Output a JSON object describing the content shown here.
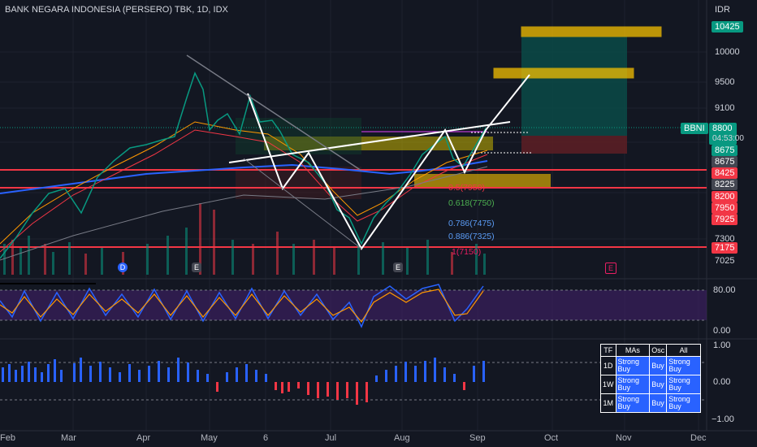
{
  "chart": {
    "title": "BANK NEGARA INDONESIA (PERSERO) TBK, 1D, IDX",
    "currency": "IDR",
    "symbol": "BBNI",
    "last_price": "8800",
    "countdown": "04:53:00"
  },
  "price_axis": {
    "ticks": [
      "10000",
      "9500",
      "9100",
      "7300",
      "7025"
    ],
    "tags": [
      {
        "text": "10425",
        "kind": "teal"
      },
      {
        "text": "8675",
        "kind": "teal"
      },
      {
        "text": "8675",
        "kind": "grey"
      },
      {
        "text": "8425",
        "kind": "red"
      },
      {
        "text": "8225",
        "kind": "grey"
      },
      {
        "text": "8200",
        "kind": "red"
      },
      {
        "text": "7950",
        "kind": "red"
      },
      {
        "text": "7925",
        "kind": "red"
      },
      {
        "text": "7175",
        "kind": "red"
      }
    ]
  },
  "fib_labels": [
    {
      "text": "0.5(7950)",
      "color": "#f23645"
    },
    {
      "text": "0.618(7750)",
      "color": "#4caf50"
    },
    {
      "text": "0.786(7475)",
      "color": "#5b9cf6"
    },
    {
      "text": "0.886(7325)",
      "color": "#5b9cf6"
    },
    {
      "text": "1(7150)",
      "color": "#e91e63"
    }
  ],
  "event_markers": [
    {
      "text": "D",
      "kind": "dividend"
    },
    {
      "text": "E",
      "kind": "earnings"
    },
    {
      "text": "E",
      "kind": "earnings"
    },
    {
      "text": "E",
      "kind": "earnings-upcoming"
    }
  ],
  "stoch_axis": {
    "ticks": [
      "80.00",
      "0.00"
    ]
  },
  "macd_axis": {
    "ticks": [
      "1.00",
      "0.00",
      "−1.00"
    ]
  },
  "time_axis": [
    "Feb",
    "Mar",
    "Apr",
    "May",
    "6",
    "Jul",
    "Aug",
    "Sep",
    "Oct",
    "Nov",
    "Dec"
  ],
  "tf_table": {
    "headers": [
      "TF",
      "MAs",
      "Osc",
      "All"
    ],
    "rows": [
      {
        "tf": "1D",
        "mas": "Strong Buy",
        "osc": "Buy",
        "all": "Strong Buy"
      },
      {
        "tf": "1W",
        "mas": "Strong Buy",
        "osc": "Buy",
        "all": "Strong Buy"
      },
      {
        "tf": "1M",
        "mas": "Strong Buy",
        "osc": "Buy",
        "all": "Strong Buy"
      }
    ]
  },
  "colors": {
    "up": "#089981",
    "down": "#f23645",
    "accent": "#2962ff",
    "zone_yellow": "#f5c000",
    "target_teal": "#0b4a47",
    "stop_red": "#5a1e25",
    "stoch_fill": "#3b1f5e",
    "macd_up": "#2962ff",
    "macd_down": "#f23645"
  }
}
